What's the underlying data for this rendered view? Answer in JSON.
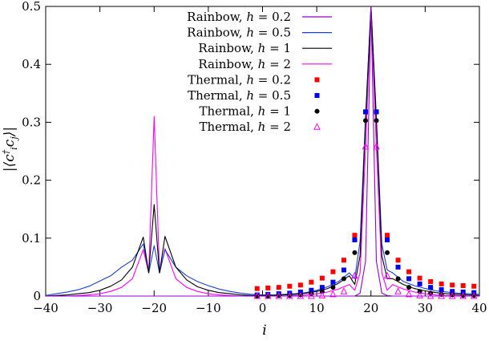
{
  "chart_data": {
    "type": "line",
    "xlabel": "i",
    "ylabel": "|⟨c†i cj⟩|",
    "xlim": [
      -40,
      40
    ],
    "ylim": [
      0,
      0.5
    ],
    "xticks": [
      -40,
      -30,
      -20,
      -10,
      0,
      10,
      20,
      30,
      40
    ],
    "yticks": [
      0,
      0.1,
      0.2,
      0.3,
      0.4,
      0.5
    ],
    "xtick_labels": [
      "−40",
      "−30",
      "−20",
      "−10",
      "0",
      "10",
      "20",
      "30",
      "40"
    ],
    "ytick_labels": [
      "0",
      "0.1",
      "0.2",
      "0.3",
      "0.4",
      "0.5"
    ],
    "legend_position": "top-center",
    "x": [
      -40,
      -38,
      -36,
      -34,
      -32,
      -30,
      -28,
      -26,
      -24,
      -22,
      -21,
      -20,
      -19,
      -18,
      -16,
      -14,
      -12,
      -10,
      -8,
      -6,
      -4,
      -2,
      0,
      2,
      4,
      6,
      8,
      10,
      12,
      14,
      16,
      17,
      18,
      19,
      20,
      21,
      22,
      23,
      24,
      26,
      28,
      30,
      32,
      34,
      36,
      38,
      40
    ],
    "series": [
      {
        "name": "Rainbow, h = 0.2",
        "prefix": "Rainbow,",
        "hval": "0.2",
        "kind": "line",
        "color": "#9400d3",
        "values": [
          0,
          0,
          0,
          0,
          0,
          0,
          0,
          0,
          0,
          0,
          0,
          0,
          0,
          0,
          0,
          0,
          0,
          0,
          0,
          0,
          0,
          0,
          0,
          0,
          0,
          0,
          0,
          0,
          0,
          0,
          0,
          0,
          0.005,
          0.06,
          0.5,
          0.06,
          0.005,
          0.001,
          0,
          0,
          0,
          0,
          0,
          0,
          0,
          0,
          0
        ]
      },
      {
        "name": "Rainbow, h = 0.5",
        "prefix": "Rainbow,",
        "hval": "0.5",
        "kind": "line",
        "color": "#1a3fd6",
        "values": [
          0.001,
          0.004,
          0.007,
          0.011,
          0.017,
          0.026,
          0.035,
          0.05,
          0.062,
          0.09,
          0.04,
          0.087,
          0.04,
          0.08,
          0.05,
          0.035,
          0.025,
          0.018,
          0.012,
          0.008,
          0.005,
          0.003,
          0.002,
          0.002,
          0.003,
          0.004,
          0.006,
          0.01,
          0.016,
          0.025,
          0.04,
          0.03,
          0.095,
          0.31,
          0.5,
          0.31,
          0.09,
          0.045,
          0.04,
          0.025,
          0.018,
          0.013,
          0.009,
          0.007,
          0.005,
          0.004,
          0.003
        ]
      },
      {
        "name": "Rainbow, h = 1",
        "prefix": "Rainbow,",
        "hval": "1",
        "kind": "line",
        "color": "#000000",
        "values": [
          0,
          0.001,
          0.002,
          0.004,
          0.006,
          0.01,
          0.017,
          0.028,
          0.05,
          0.102,
          0.04,
          0.158,
          0.04,
          0.103,
          0.05,
          0.028,
          0.016,
          0.01,
          0.006,
          0.004,
          0.002,
          0.001,
          0.001,
          0.001,
          0.002,
          0.003,
          0.005,
          0.008,
          0.013,
          0.022,
          0.035,
          0.02,
          0.07,
          0.3,
          0.5,
          0.3,
          0.07,
          0.03,
          0.03,
          0.02,
          0.013,
          0.009,
          0.006,
          0.004,
          0.003,
          0.002,
          0.001
        ]
      },
      {
        "name": "Rainbow, h = 2",
        "prefix": "Rainbow,",
        "hval": "2",
        "kind": "line",
        "color": "#ff00ff",
        "values": [
          0,
          0,
          0,
          0.001,
          0.002,
          0.004,
          0.008,
          0.015,
          0.03,
          0.08,
          0.04,
          0.31,
          0.04,
          0.082,
          0.03,
          0.015,
          0.008,
          0.004,
          0.002,
          0.001,
          0,
          0,
          0,
          0,
          0,
          0.001,
          0.002,
          0.004,
          0.007,
          0.012,
          0.02,
          0.01,
          0.04,
          0.255,
          0.5,
          0.255,
          0.04,
          0.01,
          0.02,
          0.012,
          0.007,
          0.004,
          0.002,
          0.001,
          0.001,
          0,
          0
        ]
      },
      {
        "name": "Thermal, h = 0.2",
        "prefix": "Thermal,",
        "hval": "0.2",
        "kind": "marker",
        "marker": "square",
        "color": "#ff0000",
        "x": [
          -1,
          1,
          3,
          5,
          7,
          9,
          11,
          13,
          15,
          17,
          19,
          21,
          23,
          25,
          27,
          29,
          31,
          33,
          35,
          37,
          39
        ],
        "values": [
          0.013,
          0.014,
          0.015,
          0.017,
          0.019,
          0.024,
          0.031,
          0.042,
          0.062,
          0.105,
          0.318,
          0.318,
          0.105,
          0.062,
          0.042,
          0.031,
          0.025,
          0.021,
          0.019,
          0.018,
          0.017
        ]
      },
      {
        "name": "Thermal, h = 0.5",
        "prefix": "Thermal,",
        "hval": "0.5",
        "kind": "marker",
        "marker": "square",
        "color": "#0000ee",
        "x": [
          -1,
          1,
          3,
          5,
          7,
          9,
          11,
          13,
          15,
          17,
          19,
          21,
          23,
          25,
          27,
          29,
          31,
          33,
          35,
          37,
          39
        ],
        "values": [
          0.002,
          0.003,
          0.004,
          0.005,
          0.007,
          0.01,
          0.015,
          0.024,
          0.045,
          0.097,
          0.318,
          0.318,
          0.097,
          0.05,
          0.03,
          0.021,
          0.015,
          0.011,
          0.008,
          0.007,
          0.006
        ]
      },
      {
        "name": "Thermal, h = 1",
        "prefix": "Thermal,",
        "hval": "1",
        "kind": "marker",
        "marker": "circle",
        "color": "#000000",
        "x": [
          -1,
          1,
          3,
          5,
          7,
          9,
          11,
          13,
          15,
          17,
          19,
          21,
          23,
          25,
          27,
          29,
          31,
          33,
          35,
          37,
          39
        ],
        "values": [
          0,
          0,
          0.001,
          0.001,
          0.002,
          0.004,
          0.008,
          0.015,
          0.03,
          0.075,
          0.303,
          0.303,
          0.075,
          0.03,
          0.015,
          0.008,
          0.005,
          0.003,
          0.002,
          0.001,
          0.001
        ]
      },
      {
        "name": "Thermal, h = 2",
        "prefix": "Thermal,",
        "hval": "2",
        "kind": "marker",
        "marker": "triangle-open",
        "color": "#ff00ff",
        "x": [
          -1,
          1,
          3,
          5,
          7,
          9,
          11,
          13,
          15,
          17,
          19,
          21,
          23,
          25,
          27,
          29,
          31,
          33,
          35,
          37,
          39
        ],
        "values": [
          0,
          0,
          0,
          0,
          0,
          0,
          0.001,
          0.003,
          0.008,
          0.035,
          0.258,
          0.258,
          0.035,
          0.008,
          0.003,
          0.001,
          0,
          0,
          0,
          0,
          0
        ]
      }
    ]
  }
}
